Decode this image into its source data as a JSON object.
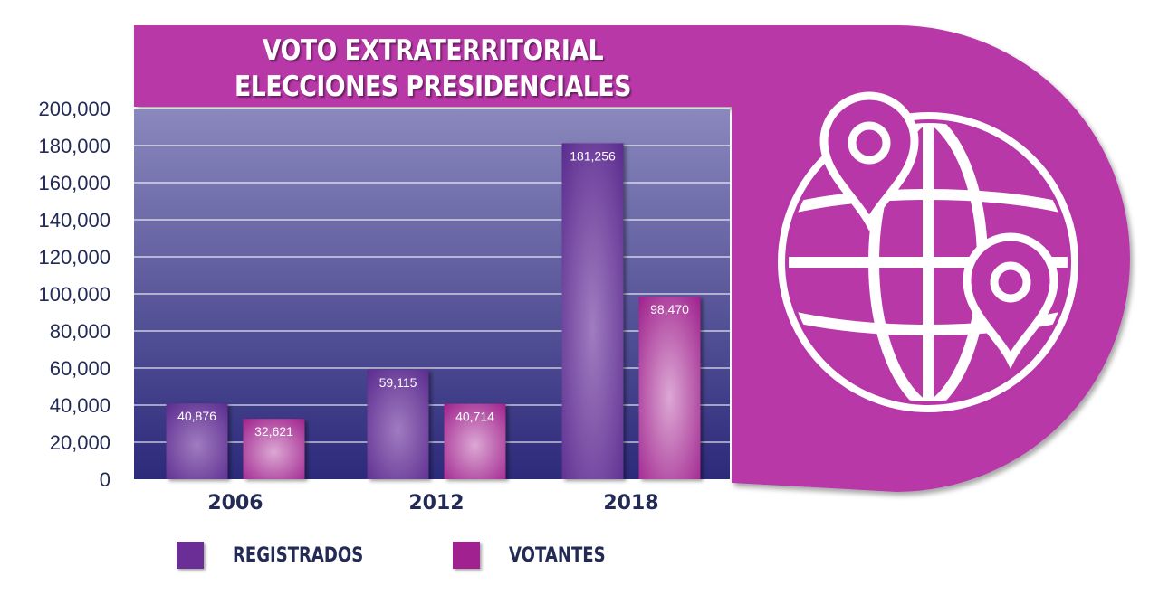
{
  "chart_data": {
    "type": "bar",
    "title_lines": [
      "VOTO EXTRATERRITORIAL",
      "ELECCIONES PRESIDENCIALES"
    ],
    "categories": [
      "2006",
      "2012",
      "2018"
    ],
    "series": [
      {
        "name": "REGISTRADOS",
        "values": [
          40876,
          59115,
          181256
        ],
        "labels": [
          "40,876",
          "59,115",
          "181,256"
        ],
        "color": "#7a3aa0"
      },
      {
        "name": "VOTANTES",
        "values": [
          32621,
          40714,
          98470
        ],
        "labels": [
          "32,621",
          "40,714",
          "98,470"
        ],
        "color": "#b52a9a"
      }
    ],
    "ylim": [
      0,
      200000
    ],
    "yticks": [
      0,
      20000,
      40000,
      60000,
      80000,
      100000,
      120000,
      140000,
      160000,
      180000,
      200000
    ],
    "ytick_labels": [
      "0",
      "20,000",
      "40,000",
      "60,000",
      "80,000",
      "100,000",
      "120,000",
      "140,000",
      "160,000",
      "180,000",
      "200,000"
    ],
    "grid": true,
    "legend_position": "bottom-left"
  },
  "colors": {
    "banner": "#b837a8",
    "plot_top": "#8a88bd",
    "plot_bottom": "#2c2a7a",
    "axis_text": "#222a55",
    "globe_line": "#ffffff"
  },
  "icons": [
    "globe-icon",
    "location-pin-icon"
  ]
}
